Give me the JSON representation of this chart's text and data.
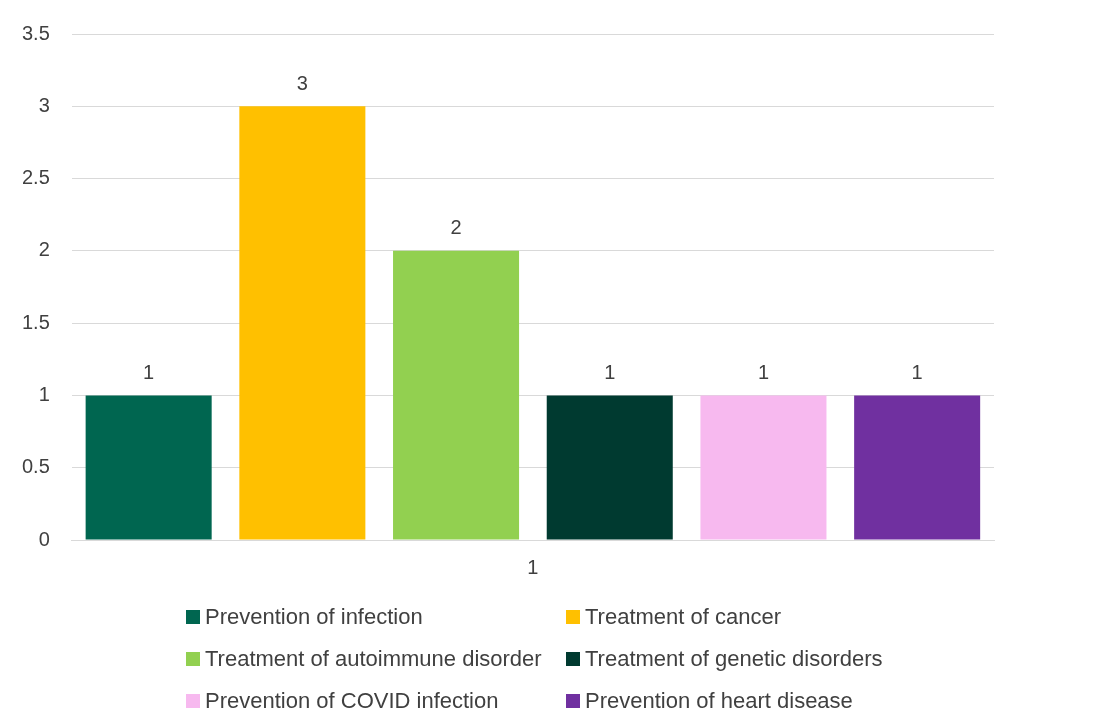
{
  "chart_data": {
    "type": "bar",
    "categories": [
      null,
      null,
      null,
      null,
      null,
      null
    ],
    "series": [
      {
        "name": "Prevention of infection",
        "color": "#006650",
        "values": [
          1,
          null,
          null,
          null,
          null,
          null
        ]
      },
      {
        "name": "Treatment of cancer",
        "color": "#ffc000",
        "values": [
          null,
          3,
          null,
          null,
          null,
          null
        ]
      },
      {
        "name": "Treatment of autoimmune disorder",
        "color": "#92d050",
        "values": [
          null,
          null,
          2,
          null,
          null,
          null
        ]
      },
      {
        "name": "Treatment of genetic disorders",
        "color": "#003a30",
        "values": [
          null,
          null,
          null,
          1,
          null,
          null
        ]
      },
      {
        "name": "Prevention of COVID infection",
        "color": "#f7b9ef",
        "values": [
          null,
          null,
          null,
          null,
          1,
          null
        ]
      },
      {
        "name": "Prevention of heart disease",
        "color": "#7030a0",
        "values": [
          null,
          null,
          null,
          null,
          null,
          1
        ]
      }
    ],
    "annotations": [
      "1"
    ],
    "ylim": [
      0,
      3.5
    ],
    "yticks": [
      0,
      0.5,
      1,
      1.5,
      2,
      2.5,
      3,
      3.5
    ],
    "grid": "y",
    "legend": "bottom",
    "data_labels": true
  }
}
